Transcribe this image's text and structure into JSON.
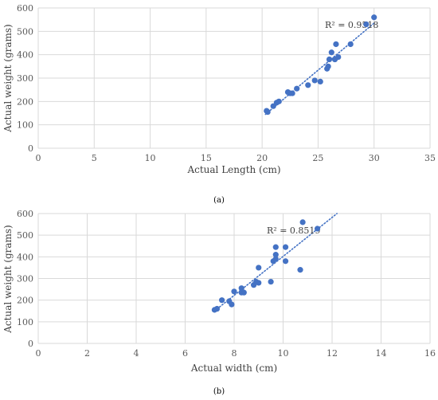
{
  "chart_data": [
    {
      "type": "scatter",
      "caption": "(a)",
      "xlabel": "Actual Length (cm)",
      "ylabel": "Actual weight (grams)",
      "xlim": [
        0,
        35
      ],
      "ylim": [
        0,
        600
      ],
      "xticks": [
        0,
        5,
        10,
        15,
        20,
        25,
        30,
        35
      ],
      "yticks": [
        0,
        100,
        200,
        300,
        400,
        500,
        600
      ],
      "grid": true,
      "trendline": {
        "style": "linear-dotted",
        "r2_label": "R² = 0.9518",
        "x_range": [
          20.3,
          30
        ],
        "y_range": [
          145,
          535
        ]
      },
      "color": "#4472c4",
      "points": [
        [
          20.4,
          160
        ],
        [
          20.5,
          155
        ],
        [
          21.0,
          180
        ],
        [
          21.3,
          195
        ],
        [
          21.5,
          200
        ],
        [
          22.3,
          240
        ],
        [
          22.5,
          235
        ],
        [
          22.7,
          235
        ],
        [
          23.1,
          255
        ],
        [
          24.1,
          270
        ],
        [
          24.7,
          290
        ],
        [
          25.2,
          285
        ],
        [
          25.8,
          340
        ],
        [
          25.9,
          350
        ],
        [
          26.0,
          380
        ],
        [
          26.2,
          410
        ],
        [
          26.5,
          380
        ],
        [
          26.6,
          445
        ],
        [
          26.8,
          390
        ],
        [
          27.9,
          445
        ],
        [
          29.3,
          530
        ],
        [
          30.0,
          560
        ]
      ]
    },
    {
      "type": "scatter",
      "caption": "(b)",
      "xlabel": "Actual width (cm)",
      "ylabel": "Actual weight (grams)",
      "xlim": [
        0,
        16
      ],
      "ylim": [
        0,
        600
      ],
      "xticks": [
        0,
        2,
        4,
        6,
        8,
        10,
        12,
        14,
        16
      ],
      "yticks": [
        0,
        100,
        200,
        300,
        400,
        500,
        600
      ],
      "grid": true,
      "trendline": {
        "style": "linear-dotted",
        "r2_label": "R² = 0.8519",
        "x_range": [
          7.2,
          12.2
        ],
        "y_range": [
          150,
          600
        ]
      },
      "color": "#4472c4",
      "points": [
        [
          7.2,
          155
        ],
        [
          7.3,
          160
        ],
        [
          7.5,
          200
        ],
        [
          7.8,
          195
        ],
        [
          7.9,
          180
        ],
        [
          8.0,
          240
        ],
        [
          8.3,
          235
        ],
        [
          8.3,
          255
        ],
        [
          8.4,
          235
        ],
        [
          8.8,
          270
        ],
        [
          8.9,
          285
        ],
        [
          9.0,
          280
        ],
        [
          9.0,
          350
        ],
        [
          9.5,
          285
        ],
        [
          9.6,
          380
        ],
        [
          9.7,
          390
        ],
        [
          9.7,
          410
        ],
        [
          9.7,
          445
        ],
        [
          10.1,
          380
        ],
        [
          10.1,
          445
        ],
        [
          10.7,
          340
        ],
        [
          10.8,
          560
        ],
        [
          11.4,
          530
        ]
      ]
    }
  ]
}
